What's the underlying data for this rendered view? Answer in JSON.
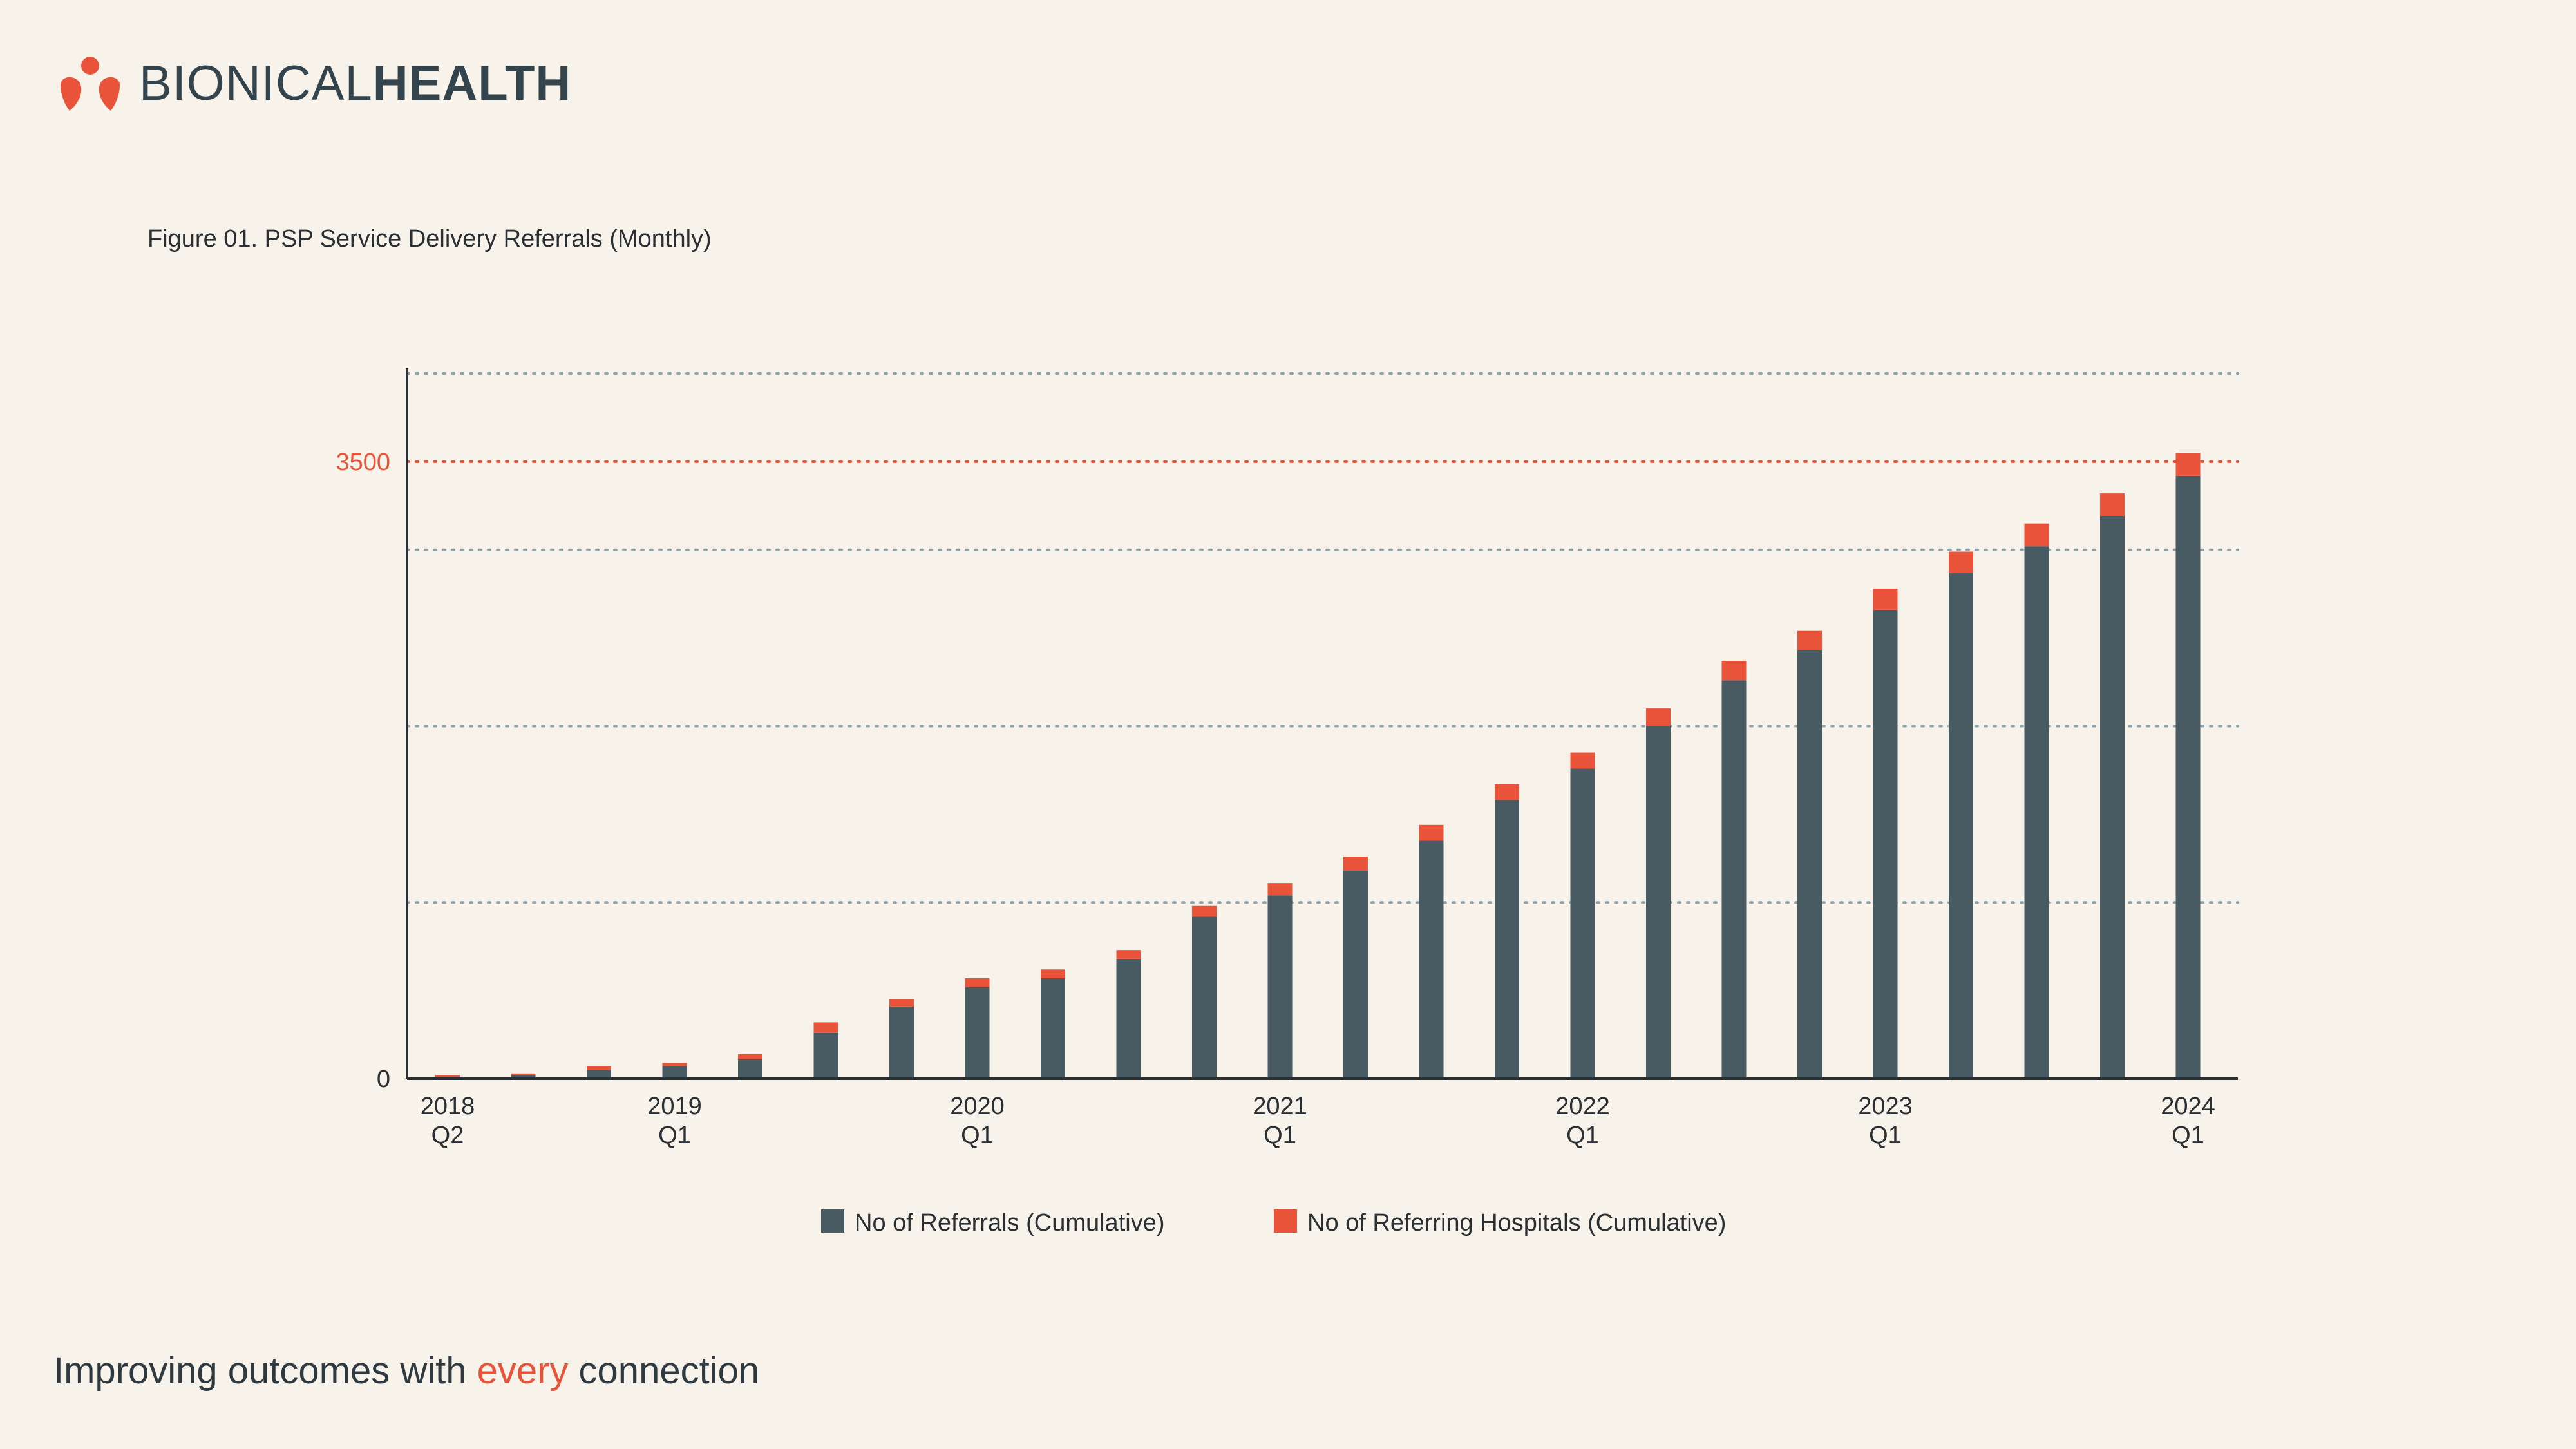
{
  "brand": {
    "name_light": "BIONICAL",
    "name_bold": "HEALTH",
    "color_accent": "#e8533a",
    "color_dark": "#34444c"
  },
  "figure_caption": "Figure 01. PSP Service Delivery Referrals (Monthly)",
  "tagline": {
    "before": "Improving outcomes with ",
    "accent": "every",
    "after": " connection"
  },
  "chart_data": {
    "type": "bar",
    "stacked": true,
    "title": "",
    "xlabel": "",
    "ylabel": "",
    "ylim": [
      0,
      4000
    ],
    "yticks_labeled": [
      0,
      3500
    ],
    "reference_line": {
      "value": 3500,
      "color": "#e8533a",
      "style": "dotted"
    },
    "gridlines": {
      "style": "dotted",
      "values": [
        1000,
        2000,
        3000,
        4000
      ]
    },
    "grid": true,
    "legend_position": "bottom-center",
    "categories": [
      "2018 Q2",
      "",
      "",
      "2019 Q1",
      "",
      "",
      "",
      "2020 Q1",
      "",
      "",
      "",
      "2021 Q1",
      "",
      "",
      "",
      "2022 Q1",
      "",
      "",
      "",
      "2023 Q1",
      "",
      "",
      "",
      "2024 Q1"
    ],
    "x_tick_labels": [
      {
        "index": 0,
        "year": "2018",
        "quarter": "Q2"
      },
      {
        "index": 3,
        "year": "2019",
        "quarter": "Q1"
      },
      {
        "index": 7,
        "year": "2020",
        "quarter": "Q1"
      },
      {
        "index": 11,
        "year": "2021",
        "quarter": "Q1"
      },
      {
        "index": 15,
        "year": "2022",
        "quarter": "Q1"
      },
      {
        "index": 19,
        "year": "2023",
        "quarter": "Q1"
      },
      {
        "index": 23,
        "year": "2024",
        "quarter": "Q1"
      }
    ],
    "series": [
      {
        "name": "No of Referrals (Cumulative)",
        "color": "#485a62",
        "values": [
          10,
          20,
          50,
          70,
          110,
          260,
          410,
          520,
          570,
          680,
          920,
          1040,
          1180,
          1350,
          1580,
          1760,
          2000,
          2260,
          2430,
          2660,
          2870,
          3020,
          3190,
          3420
        ]
      },
      {
        "name": "No of Referring Hospitals (Cumulative)",
        "color": "#e8533a",
        "values": [
          10,
          10,
          20,
          20,
          30,
          60,
          40,
          50,
          50,
          50,
          60,
          70,
          80,
          90,
          90,
          90,
          100,
          110,
          110,
          120,
          120,
          130,
          130,
          130
        ]
      }
    ]
  }
}
